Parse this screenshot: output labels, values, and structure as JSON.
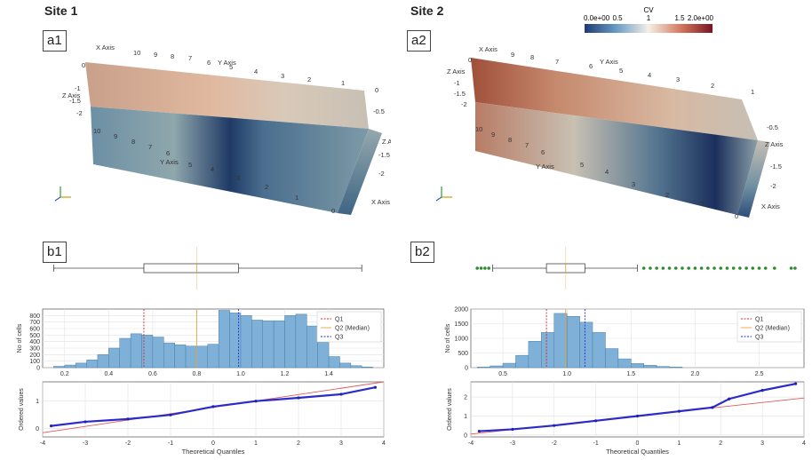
{
  "sites": [
    {
      "id": "site1",
      "title": "Site 1",
      "label_a": "a1",
      "label_b": "b1"
    },
    {
      "id": "site2",
      "title": "Site 2",
      "label_a": "a2",
      "label_b": "b2"
    }
  ],
  "colorbar": {
    "title": "CV",
    "ticks": [
      "0.0e+00",
      "0.5",
      "1",
      "1.5",
      "2.0e+00"
    ],
    "colors": {
      "low": "#1f3b73",
      "mid": "#f3f0e6",
      "high": "#7a1424"
    }
  },
  "volume": {
    "axis_x": "X Axis",
    "axis_y": "Y Axis",
    "axis_z": "Z Axis",
    "xy_ticks": [
      "0",
      "1",
      "2",
      "3",
      "4",
      "5",
      "6",
      "7",
      "8",
      "9",
      "10"
    ],
    "z_ticks": [
      "0",
      "-0.5",
      "-1",
      "-1.5",
      "-2"
    ]
  },
  "legend": {
    "q1": "Q1",
    "q2": "Q2 (Median)",
    "q3": "Q3"
  },
  "hist_ylabel": "No of cells",
  "qq_ylabel": "Ordered values",
  "qq_xlabel": "Theoretical Quantiles",
  "chart_data": [
    {
      "type": "bar",
      "site": "Site 1",
      "panel": "histogram",
      "bin_edges_start": 0.15,
      "bin_width": 0.05,
      "values": [
        20,
        40,
        70,
        120,
        200,
        300,
        450,
        520,
        500,
        470,
        380,
        350,
        330,
        330,
        360,
        880,
        840,
        800,
        730,
        720,
        720,
        800,
        820,
        640,
        390,
        170,
        70,
        30,
        10
      ],
      "xlim": [
        0.1,
        1.65
      ],
      "ylim": [
        0,
        900
      ],
      "xticks": [
        "0.2",
        "0.4",
        "0.6",
        "0.8",
        "1.0",
        "1.2",
        "1.4"
      ],
      "yticks": [
        "0",
        "100",
        "200",
        "300",
        "400",
        "500",
        "600",
        "700",
        "800"
      ],
      "quartiles": {
        "q1": 0.56,
        "q2": 0.8,
        "q3": 0.99
      },
      "ylabel": "No of cells"
    },
    {
      "type": "bar",
      "site": "Site 2",
      "panel": "histogram",
      "bin_edges_start": 0.3,
      "bin_width": 0.1,
      "values": [
        20,
        60,
        150,
        420,
        900,
        1200,
        1850,
        1750,
        1550,
        1200,
        650,
        300,
        140,
        80,
        40,
        20
      ],
      "xlim": [
        0.25,
        2.85
      ],
      "ylim": [
        0,
        2000
      ],
      "xticks": [
        "0.5",
        "1.0",
        "1.5",
        "2.0",
        "2.5"
      ],
      "yticks": [
        "0",
        "500",
        "1000",
        "1500",
        "2000"
      ],
      "quartiles": {
        "q1": 0.84,
        "q2": 0.99,
        "q3": 1.14
      },
      "ylabel": "No of cells"
    },
    {
      "type": "scatter",
      "site": "Site 1",
      "panel": "qq",
      "x": [
        -3.8,
        -3,
        -2,
        -1,
        0,
        1,
        2,
        3,
        3.8
      ],
      "y": [
        0.1,
        0.25,
        0.35,
        0.5,
        0.8,
        1.0,
        1.12,
        1.25,
        1.5
      ],
      "fit": {
        "x": [
          -4,
          4
        ],
        "y": [
          -0.15,
          1.7
        ]
      },
      "xlim": [
        -4,
        4
      ],
      "ylim": [
        -0.3,
        1.7
      ],
      "xticks": [
        "-4",
        "-3",
        "-2",
        "-1",
        "0",
        "1",
        "2",
        "3",
        "4"
      ],
      "yticks": [
        "0",
        "1"
      ],
      "xlabel": "Theoretical Quantiles",
      "ylabel": "Ordered values"
    },
    {
      "type": "scatter",
      "site": "Site 2",
      "panel": "qq",
      "x": [
        -3.8,
        -3,
        -2,
        -1,
        0,
        1,
        1.8,
        2.2,
        3,
        3.8
      ],
      "y": [
        0.2,
        0.3,
        0.5,
        0.75,
        1.0,
        1.25,
        1.45,
        1.9,
        2.35,
        2.7
      ],
      "fit": {
        "x": [
          -4,
          4
        ],
        "y": [
          0.05,
          1.95
        ]
      },
      "xlim": [
        -4,
        4
      ],
      "ylim": [
        -0.1,
        2.8
      ],
      "xticks": [
        "-4",
        "-3",
        "-2",
        "-1",
        "0",
        "1",
        "2",
        "3",
        "4"
      ],
      "yticks": [
        "0",
        "1",
        "2"
      ],
      "xlabel": "Theoretical Quantiles",
      "ylabel": "Ordered values"
    },
    {
      "type": "box",
      "site": "Site 1",
      "panel": "boxplot",
      "whisker_low": 0.15,
      "q1": 0.56,
      "median": 0.8,
      "q3": 0.99,
      "whisker_high": 1.55,
      "xlim": [
        0.1,
        1.65
      ],
      "outliers": []
    },
    {
      "type": "box",
      "site": "Site 2",
      "panel": "boxplot",
      "whisker_low": 0.42,
      "q1": 0.84,
      "median": 0.99,
      "q3": 1.14,
      "whisker_high": 1.55,
      "xlim": [
        0.25,
        2.85
      ],
      "outliers": [
        0.3,
        0.33,
        0.36,
        0.39,
        1.6,
        1.65,
        1.7,
        1.75,
        1.8,
        1.85,
        1.9,
        1.95,
        2.0,
        2.05,
        2.1,
        2.15,
        2.2,
        2.25,
        2.3,
        2.35,
        2.4,
        2.45,
        2.5,
        2.55,
        2.62,
        2.75,
        2.78
      ]
    }
  ]
}
